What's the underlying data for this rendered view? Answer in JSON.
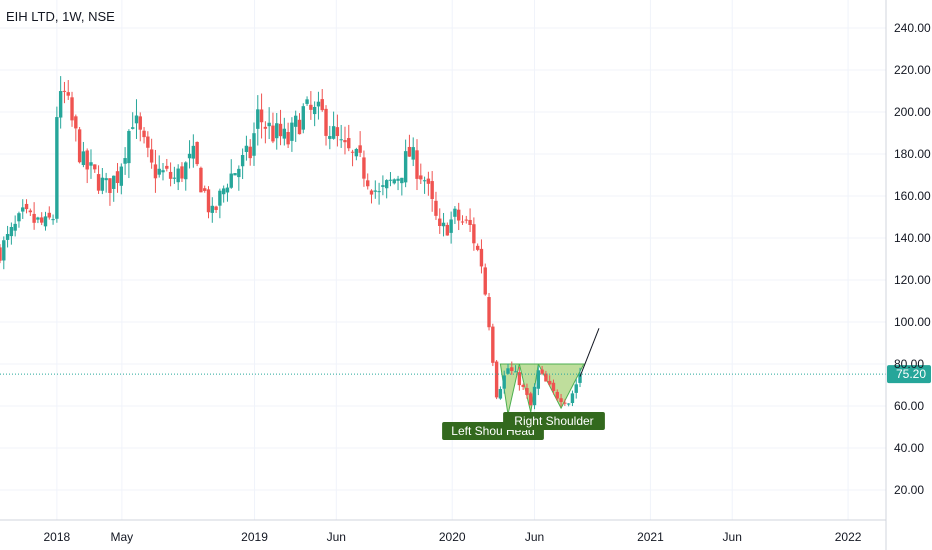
{
  "header": {
    "symbol_label": "EIH LTD, 1W, NSE"
  },
  "colors": {
    "up": "#26a69a",
    "down": "#ef5350",
    "grid": "#f0f3fa",
    "axis_line": "#d1d4dc",
    "price_line": "#26a69a",
    "price_badge": "#26a69a",
    "pattern_fill": "#8bc34a",
    "pattern_stroke": "#4caf50",
    "label_bg": "#33691e",
    "trend_line": "#131722"
  },
  "current_price": {
    "value": 75.2,
    "label": "75.20"
  },
  "annotations": [
    {
      "text": "Left Shou Head"
    },
    {
      "text": "Right Shoulder"
    }
  ],
  "chart_data": {
    "type": "candlestick",
    "title": "EIH LTD, 1W, NSE",
    "interval": "1W",
    "exchange": "NSE",
    "ylim": [
      0,
      250
    ],
    "y_ticks": [
      20,
      40,
      60,
      80,
      100,
      120,
      140,
      160,
      180,
      200,
      220,
      240
    ],
    "y_tick_labels": [
      "20.00",
      "40.00",
      "60.00",
      "80.00",
      "100.00",
      "120.00",
      "140.00",
      "160.00",
      "180.00",
      "200.00",
      "220.00",
      "240.00"
    ],
    "x_tick_labels": [
      {
        "date": "2018-01-01",
        "label": "2018"
      },
      {
        "date": "2018-05-01",
        "label": "May"
      },
      {
        "date": "2019-01-01",
        "label": "2019"
      },
      {
        "date": "2019-06-01",
        "label": "Jun"
      },
      {
        "date": "2020-01-01",
        "label": "2020"
      },
      {
        "date": "2020-06-01",
        "label": "Jun"
      },
      {
        "date": "2021-01-01",
        "label": "2021"
      },
      {
        "date": "2021-06-01",
        "label": "Jun"
      },
      {
        "date": "2022-01-01",
        "label": "2022"
      }
    ],
    "x_range": [
      "2017-09-18",
      "2022-03-12"
    ],
    "grid": true,
    "ohlc_anchors": [
      {
        "date": "2017-09-18",
        "close": 134
      },
      {
        "date": "2017-10-30",
        "close": 150
      },
      {
        "date": "2017-12-11",
        "close": 146
      },
      {
        "date": "2017-12-25",
        "close": 150
      },
      {
        "date": "2018-01-01",
        "close": 200
      },
      {
        "date": "2018-01-15",
        "close": 208
      },
      {
        "date": "2018-02-19",
        "close": 175
      },
      {
        "date": "2018-04-02",
        "close": 164
      },
      {
        "date": "2018-04-23",
        "close": 170
      },
      {
        "date": "2018-05-21",
        "close": 198
      },
      {
        "date": "2018-06-25",
        "close": 173
      },
      {
        "date": "2018-08-06",
        "close": 168
      },
      {
        "date": "2018-09-10",
        "close": 178
      },
      {
        "date": "2018-10-15",
        "close": 150
      },
      {
        "date": "2018-11-12",
        "close": 168
      },
      {
        "date": "2018-12-24",
        "close": 180
      },
      {
        "date": "2019-01-07",
        "close": 198
      },
      {
        "date": "2019-02-04",
        "close": 190
      },
      {
        "date": "2019-03-04",
        "close": 186
      },
      {
        "date": "2019-04-01",
        "close": 200
      },
      {
        "date": "2019-05-06",
        "close": 198
      },
      {
        "date": "2019-06-10",
        "close": 183
      },
      {
        "date": "2019-07-15",
        "close": 175
      },
      {
        "date": "2019-08-19",
        "close": 160
      },
      {
        "date": "2019-09-23",
        "close": 170
      },
      {
        "date": "2019-10-14",
        "close": 180
      },
      {
        "date": "2019-11-11",
        "close": 168
      },
      {
        "date": "2019-12-09",
        "close": 142
      },
      {
        "date": "2020-01-06",
        "close": 150
      },
      {
        "date": "2020-02-03",
        "close": 145
      },
      {
        "date": "2020-02-24",
        "close": 128
      },
      {
        "date": "2020-03-09",
        "close": 100
      },
      {
        "date": "2020-03-23",
        "close": 66
      },
      {
        "date": "2020-04-13",
        "close": 78
      },
      {
        "date": "2020-05-04",
        "close": 72
      },
      {
        "date": "2020-05-25",
        "close": 60
      },
      {
        "date": "2020-06-08",
        "close": 76
      },
      {
        "date": "2020-07-06",
        "close": 66
      },
      {
        "date": "2020-08-03",
        "close": 62
      },
      {
        "date": "2020-08-24",
        "close": 75
      }
    ],
    "pattern": {
      "name": "Left Shou Head / Right Shoulder",
      "points": [
        {
          "date": "2020-03-30",
          "price": 80
        },
        {
          "date": "2020-04-13",
          "price": 56
        },
        {
          "date": "2020-05-04",
          "price": 80
        },
        {
          "date": "2020-05-25",
          "price": 57
        },
        {
          "date": "2020-06-08",
          "price": 80
        },
        {
          "date": "2020-07-20",
          "price": 59
        },
        {
          "date": "2020-08-31",
          "price": 80
        }
      ],
      "neckline": 80
    },
    "trend_line": [
      {
        "date": "2020-08-24",
        "price": 74
      },
      {
        "date": "2020-09-28",
        "price": 97
      }
    ]
  }
}
